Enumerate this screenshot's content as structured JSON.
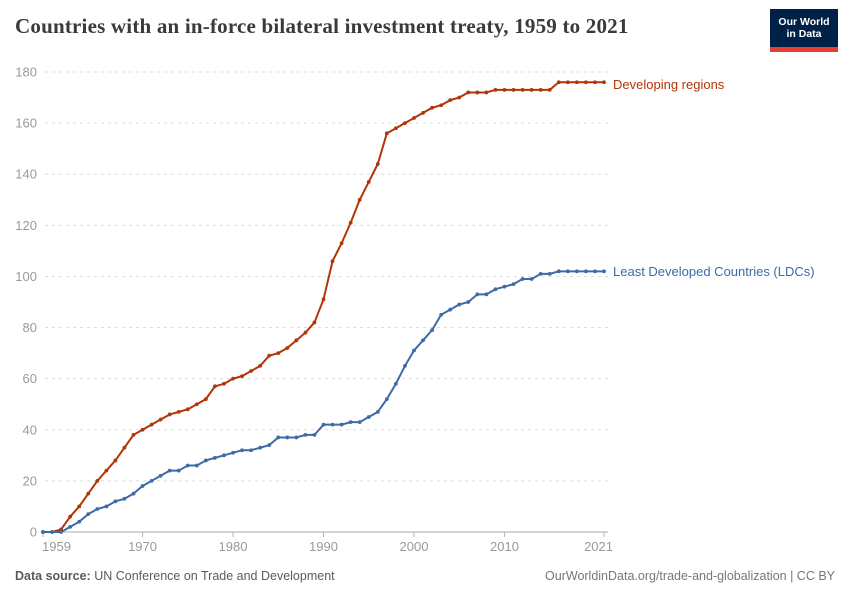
{
  "header": {
    "title": "Countries with an in-force bilateral investment treaty, 1959 to 2021"
  },
  "logo": {
    "line1": "Our World",
    "line2": "in Data",
    "bg_color": "#002147",
    "bar_color": "#E63E36"
  },
  "chart_data": {
    "type": "line",
    "title": "Countries with an in-force bilateral investment treaty, 1959 to 2021",
    "x": [
      1959,
      1960,
      1961,
      1962,
      1963,
      1964,
      1965,
      1966,
      1967,
      1968,
      1969,
      1970,
      1971,
      1972,
      1973,
      1974,
      1975,
      1976,
      1977,
      1978,
      1979,
      1980,
      1981,
      1982,
      1983,
      1984,
      1985,
      1986,
      1987,
      1988,
      1989,
      1990,
      1991,
      1992,
      1993,
      1994,
      1995,
      1996,
      1997,
      1998,
      1999,
      2000,
      2001,
      2002,
      2003,
      2004,
      2005,
      2006,
      2007,
      2008,
      2009,
      2010,
      2011,
      2012,
      2013,
      2014,
      2015,
      2016,
      2017,
      2018,
      2019,
      2020,
      2021
    ],
    "series": [
      {
        "name": "Developing regions",
        "color": "#B13507",
        "values": [
          0,
          0,
          1,
          6,
          10,
          15,
          20,
          24,
          28,
          33,
          38,
          40,
          42,
          44,
          46,
          47,
          48,
          50,
          52,
          57,
          58,
          60,
          61,
          63,
          65,
          69,
          70,
          72,
          75,
          78,
          82,
          91,
          106,
          113,
          121,
          130,
          137,
          144,
          156,
          158,
          160,
          162,
          164,
          166,
          167,
          169,
          170,
          172,
          172,
          172,
          173,
          173,
          173,
          173,
          173,
          173,
          173,
          176,
          176,
          176,
          176,
          176,
          176
        ]
      },
      {
        "name": "Least Developed Countries (LDCs)",
        "color": "#3D6BA8",
        "values": [
          0,
          0,
          0,
          2,
          4,
          7,
          9,
          10,
          12,
          13,
          15,
          18,
          20,
          22,
          24,
          24,
          26,
          26,
          28,
          29,
          30,
          31,
          32,
          32,
          33,
          34,
          37,
          37,
          37,
          38,
          38,
          42,
          42,
          42,
          43,
          43,
          45,
          47,
          52,
          58,
          65,
          71,
          75,
          79,
          85,
          87,
          89,
          90,
          93,
          93,
          95,
          96,
          97,
          99,
          99,
          101,
          101,
          102,
          102,
          102,
          102,
          102,
          102
        ]
      }
    ],
    "xlabel": "",
    "ylabel": "",
    "ylim": [
      0,
      180
    ],
    "yticks": [
      0,
      20,
      40,
      60,
      80,
      100,
      120,
      140,
      160,
      180
    ],
    "xticks": [
      1959,
      1970,
      1980,
      1990,
      2000,
      2010,
      2021
    ],
    "grid": "horizontal-dashed",
    "legend_position": "right-of-line-ends",
    "axis_text_color": "#9a9a9a",
    "gridline_color": "#dcdcdc",
    "baseline_color": "#a8a8a8"
  },
  "footer": {
    "source_label": "Data source:",
    "source_text": " UN Conference on Trade and Development",
    "link_text": "OurWorldinData.org/trade-and-globalization | CC BY"
  }
}
